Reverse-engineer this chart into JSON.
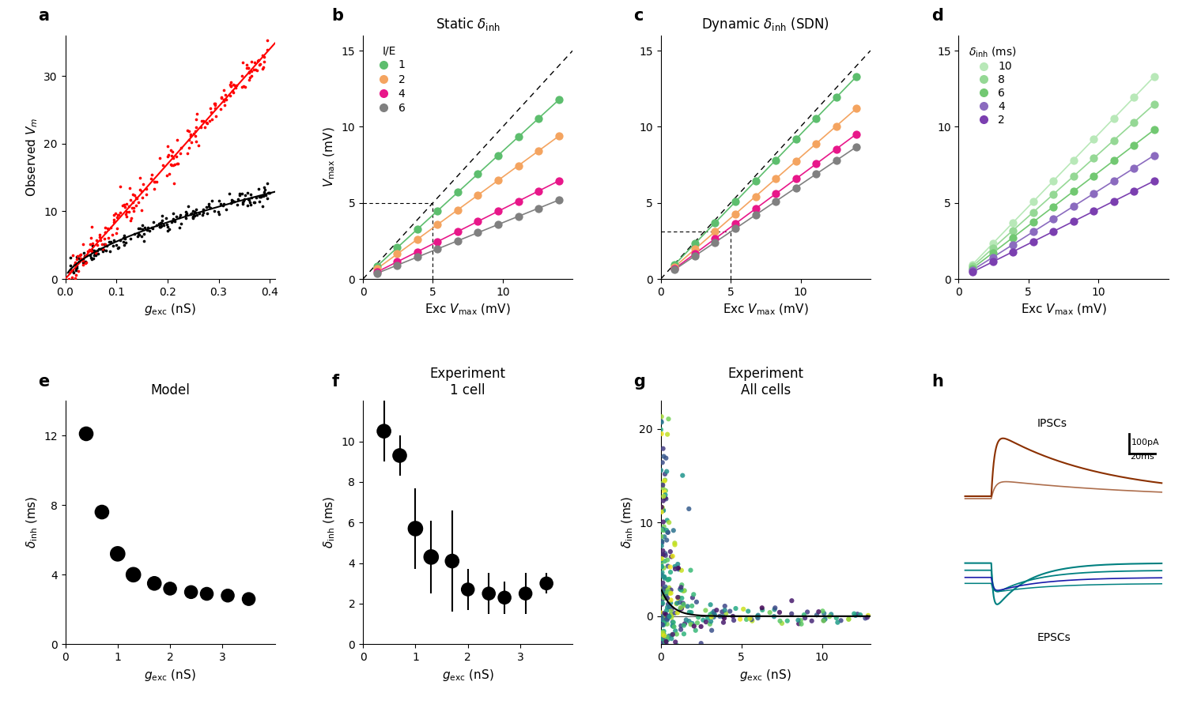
{
  "panel_a": {
    "red_slope": 85,
    "black_slope_power": 0.6,
    "black_scale": 22,
    "xlim": [
      0,
      0.41
    ],
    "ylim": [
      0,
      36
    ],
    "xticks": [
      0,
      0.1,
      0.2,
      0.3,
      0.4
    ],
    "yticks": [
      0,
      10,
      20,
      30
    ]
  },
  "panel_b": {
    "title": "Static δᵢₙₕ",
    "colors": [
      "#5dbe6e",
      "#f4a460",
      "#e8178a",
      "#808080"
    ],
    "ie_labels": [
      1,
      2,
      4,
      6
    ],
    "gains": [
      0.84,
      0.67,
      0.46,
      0.37
    ],
    "x_start": 1.0,
    "x_end": 14.0,
    "n_pts": 10,
    "xlim": [
      0,
      15
    ],
    "ylim": [
      0,
      16
    ],
    "xticks": [
      0,
      5,
      10
    ],
    "yticks": [
      0,
      5,
      10,
      15
    ],
    "dash_x": 5.0,
    "dash_y": 5.0
  },
  "panel_c": {
    "title": "Dynamic δᵢₙₕ (SDN)",
    "colors": [
      "#5dbe6e",
      "#f4a460",
      "#e8178a",
      "#808080"
    ],
    "gains": [
      0.95,
      0.8,
      0.68,
      0.62
    ],
    "x_start": 1.0,
    "x_end": 14.0,
    "n_pts": 10,
    "xlim": [
      0,
      15
    ],
    "ylim": [
      0,
      16
    ],
    "xticks": [
      0,
      5,
      10
    ],
    "yticks": [
      0,
      5,
      10,
      15
    ],
    "dash_x": 5.0,
    "dash_y": 3.1
  },
  "panel_d": {
    "delta_labels": [
      10,
      8,
      6,
      4,
      2
    ],
    "delta_colors": [
      "#b8e8b8",
      "#95d895",
      "#72c872",
      "#8b6bbf",
      "#7b3fb0"
    ],
    "gains": [
      0.95,
      0.82,
      0.7,
      0.58,
      0.46
    ],
    "x_start": 1.0,
    "x_end": 14.0,
    "n_pts": 10,
    "xlim": [
      0,
      15
    ],
    "ylim": [
      0,
      16
    ],
    "xticks": [
      0,
      5,
      10
    ],
    "yticks": [
      0,
      5,
      10,
      15
    ]
  },
  "panel_e": {
    "title": "Model",
    "x_vals": [
      0.4,
      0.7,
      1.0,
      1.3,
      1.7,
      2.0,
      2.4,
      2.7,
      3.1,
      3.5
    ],
    "y_vals": [
      12.1,
      7.6,
      5.2,
      4.0,
      3.5,
      3.2,
      3.0,
      2.9,
      2.8,
      2.6
    ],
    "dot_sizes": [
      180,
      180,
      200,
      200,
      180,
      160,
      160,
      160,
      160,
      160
    ],
    "xlim": [
      0,
      4.0
    ],
    "ylim": [
      0,
      14
    ],
    "xticks": [
      0,
      1,
      2,
      3
    ],
    "yticks": [
      0,
      4,
      8,
      12
    ]
  },
  "panel_f": {
    "title": "Experiment\n1 cell",
    "x_vals": [
      0.4,
      0.7,
      1.0,
      1.3,
      1.7,
      2.0,
      2.4,
      2.7,
      3.1,
      3.5
    ],
    "y_vals": [
      10.5,
      9.3,
      5.7,
      4.3,
      4.1,
      2.7,
      2.5,
      2.3,
      2.5,
      3.0
    ],
    "y_err_lo": [
      1.5,
      1.0,
      2.0,
      1.8,
      2.5,
      1.0,
      1.0,
      0.8,
      1.0,
      0.5
    ],
    "y_err_hi": [
      1.5,
      1.0,
      2.0,
      1.8,
      2.5,
      1.0,
      1.0,
      0.8,
      1.0,
      0.5
    ],
    "dot_sizes": [
      180,
      180,
      200,
      200,
      180,
      160,
      160,
      160,
      160,
      160
    ],
    "xlim": [
      0,
      4.0
    ],
    "ylim": [
      0,
      12
    ],
    "xticks": [
      0,
      1,
      2,
      3
    ],
    "yticks": [
      0,
      2,
      4,
      6,
      8,
      10
    ]
  },
  "panel_g": {
    "title": "Experiment\nAll cells",
    "xlim": [
      0,
      13
    ],
    "ylim": [
      -3,
      23
    ],
    "xticks": [
      0,
      5,
      10
    ],
    "yticks": [
      0,
      10,
      20
    ]
  },
  "panel_h": {
    "ipsc_color1": "#8b3000",
    "ipsc_color2": "#8b3000",
    "epsc_color1": "#008080",
    "epsc_color2": "#008080",
    "epsc_color3": "#1a1aaa",
    "epsc_color4": "#008080"
  }
}
